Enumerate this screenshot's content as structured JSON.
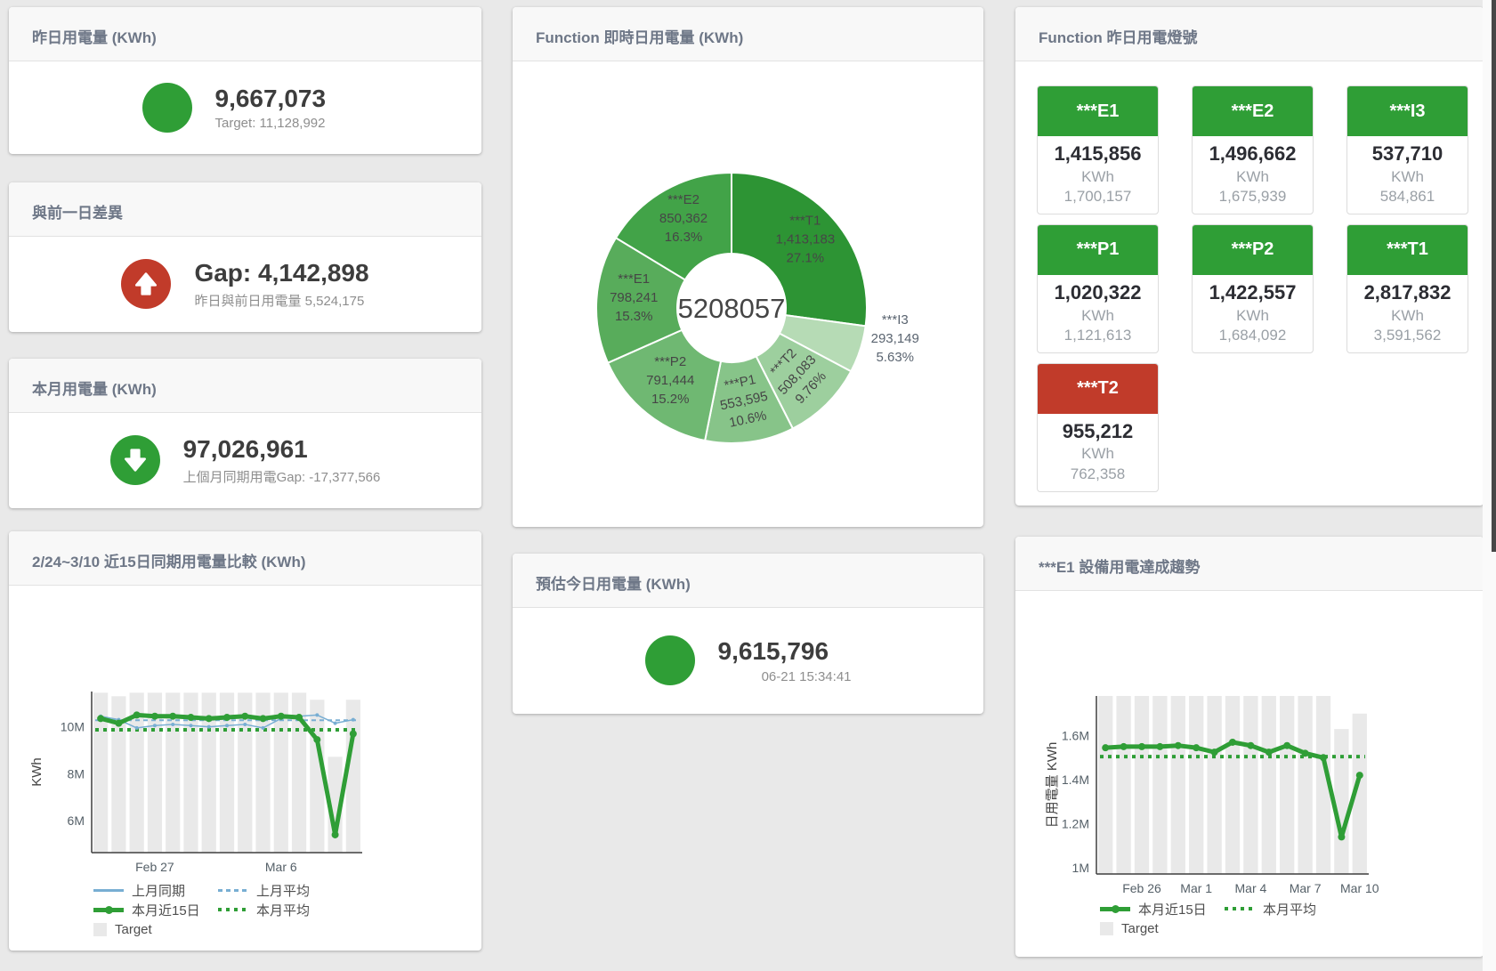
{
  "colors": {
    "green": "#2f9e36",
    "red": "#c13b2a",
    "blue": "#78aed3",
    "target_bar": "#e9e9e9",
    "page_bg": "#e9e9e9",
    "panel_header_bg": "#f8f8f8",
    "title_text": "#6e7787"
  },
  "kpi": {
    "yesterday": {
      "title": "昨日用電量 (KWh)",
      "value": "9,667,073",
      "subtitle": "Target: 11,128,992",
      "indicator": "circle",
      "indicator_color": "#2f9e36"
    },
    "prev_gap": {
      "title": "與前一日差異",
      "value": "Gap: 4,142,898",
      "subtitle": "昨日與前日用電量 5,524,175",
      "indicator": "arrow-up",
      "indicator_color": "#c13b2a"
    },
    "month": {
      "title": "本月用電量 (KWh)",
      "value": "97,026,961",
      "subtitle": "上個月同期用電Gap: -17,377,566",
      "indicator": "arrow-down",
      "indicator_color": "#2f9e36"
    },
    "estimate": {
      "title": "預估今日用電量 (KWh)",
      "value": "9,615,796",
      "subtitle": "06-21 15:34:41",
      "indicator": "circle",
      "indicator_color": "#2f9e36"
    }
  },
  "status_panel": {
    "title": "Function 昨日用電燈號",
    "unit": "KWh",
    "cards": [
      {
        "name": "***E1",
        "value": "1,415,856",
        "target": "1,700,157",
        "status_color": "#2f9e36"
      },
      {
        "name": "***E2",
        "value": "1,496,662",
        "target": "1,675,939",
        "status_color": "#2f9e36"
      },
      {
        "name": "***I3",
        "value": "537,710",
        "target": "584,861",
        "status_color": "#2f9e36"
      },
      {
        "name": "***P1",
        "value": "1,020,322",
        "target": "1,121,613",
        "status_color": "#2f9e36"
      },
      {
        "name": "***P2",
        "value": "1,422,557",
        "target": "1,684,092",
        "status_color": "#2f9e36"
      },
      {
        "name": "***T1",
        "value": "2,817,832",
        "target": "3,591,562",
        "status_color": "#2f9e36"
      },
      {
        "name": "***T2",
        "value": "955,212",
        "target": "762,358",
        "status_color": "#c13b2a"
      }
    ]
  },
  "chart_data": [
    {
      "id": "donut",
      "type": "pie",
      "title": "Function 即時日用電量 (KWh)",
      "center_label": "5208057",
      "slices": [
        {
          "name": "***T1",
          "value": 1413183,
          "value_label": "1,413,183",
          "percent_label": "27.1%",
          "color": "#2d9434",
          "label": "inside",
          "rotate": 0
        },
        {
          "name": "***I3",
          "value": 293149,
          "value_label": "293,149",
          "percent_label": "5.63%",
          "color": "#b6dbb5",
          "label": "outside",
          "rotate": 0
        },
        {
          "name": "***T2",
          "value": 508083,
          "value_label": "508,083",
          "percent_label": "9.76%",
          "color": "#9dcf9e",
          "label": "inside",
          "rotate": -47
        },
        {
          "name": "***P1",
          "value": 553595,
          "value_label": "553,595",
          "percent_label": "10.6%",
          "color": "#87c489",
          "label": "inside",
          "rotate": -12
        },
        {
          "name": "***P2",
          "value": 791444,
          "value_label": "791,444",
          "percent_label": "15.2%",
          "color": "#6fb872",
          "label": "inside",
          "rotate": 0
        },
        {
          "name": "***E1",
          "value": 798241,
          "value_label": "798,241",
          "percent_label": "15.3%",
          "color": "#58ac5b",
          "label": "inside",
          "rotate": 0
        },
        {
          "name": "***E2",
          "value": 850362,
          "value_label": "850,362",
          "percent_label": "16.3%",
          "color": "#42a348",
          "label": "inside",
          "rotate": 0
        }
      ]
    },
    {
      "id": "compare",
      "type": "line",
      "title": "2/24~3/10 近15日同期用電量比較 (KWh)",
      "ylabel": "KWh",
      "categories": [
        "2/24",
        "2/25",
        "2/26",
        "2/27",
        "2/28",
        "3/1",
        "3/2",
        "3/3",
        "3/4",
        "3/5",
        "3/6",
        "3/7",
        "3/8",
        "3/9",
        "3/10"
      ],
      "x_count": 15,
      "xticks": [
        {
          "i": 3,
          "label": "Feb 27"
        },
        {
          "i": 10,
          "label": "Mar 6"
        }
      ],
      "yticks": [
        {
          "v": 6000000,
          "label": "6M"
        },
        {
          "v": 8000000,
          "label": "8M"
        },
        {
          "v": 10000000,
          "label": "10M"
        }
      ],
      "ylim": [
        4640000,
        11500000
      ],
      "legend_rows": [
        [
          3,
          1
        ],
        [
          4,
          2
        ],
        [
          0
        ]
      ],
      "series": [
        {
          "name": "Target",
          "type": "bar",
          "color": "#e9e9e9",
          "values": [
            11450000,
            11300000,
            11450000,
            11450000,
            11450000,
            11450000,
            11450000,
            11450000,
            11450000,
            11450000,
            11450000,
            11450000,
            11150000,
            8720000,
            11150000
          ]
        },
        {
          "name": "上月平均",
          "type": "line",
          "style": "dashed",
          "color": "#78aed3",
          "width": 2,
          "constant": 10280000
        },
        {
          "name": "本月平均",
          "type": "line",
          "style": "dotted",
          "color": "#2f9e36",
          "width": 4,
          "constant": 9870000
        },
        {
          "name": "上月同期",
          "type": "line",
          "style": "solid",
          "color": "#78aed3",
          "width": 1.5,
          "marker": 2,
          "values": [
            10450000,
            10300000,
            9950000,
            10050000,
            10100000,
            10050000,
            10000000,
            10050000,
            10100000,
            9950000,
            10350000,
            10450000,
            10500000,
            10150000,
            10300000
          ]
        },
        {
          "name": "本月近15日",
          "type": "line",
          "style": "solid",
          "color": "#2f9e36",
          "width": 5,
          "marker": 4,
          "values": [
            10350000,
            10150000,
            10500000,
            10450000,
            10450000,
            10400000,
            10350000,
            10400000,
            10450000,
            10350000,
            10450000,
            10400000,
            9450000,
            5400000,
            9700000
          ]
        }
      ]
    },
    {
      "id": "trend",
      "type": "line",
      "title": "***E1 設備用電達成趨勢",
      "ylabel": "日用電量 KWh",
      "categories": [
        "2/24",
        "2/25",
        "2/26",
        "2/27",
        "2/28",
        "3/1",
        "3/2",
        "3/3",
        "3/4",
        "3/5",
        "3/6",
        "3/7",
        "3/8",
        "3/9",
        "3/10"
      ],
      "x_count": 15,
      "xticks": [
        {
          "i": 2,
          "label": "Feb 26"
        },
        {
          "i": 5,
          "label": "Mar 1"
        },
        {
          "i": 8,
          "label": "Mar 4"
        },
        {
          "i": 11,
          "label": "Mar 7"
        },
        {
          "i": 14,
          "label": "Mar 10"
        }
      ],
      "yticks": [
        {
          "v": 1000000,
          "label": "1M"
        },
        {
          "v": 1200000,
          "label": "1.2M"
        },
        {
          "v": 1400000,
          "label": "1.4M"
        },
        {
          "v": 1600000,
          "label": "1.6M"
        }
      ],
      "ylim": [
        972000,
        1780000
      ],
      "legend_rows": [
        [
          2,
          1
        ],
        [
          0
        ]
      ],
      "series": [
        {
          "name": "Target",
          "type": "bar",
          "color": "#e9e9e9",
          "values": [
            1780000,
            1780000,
            1780000,
            1780000,
            1780000,
            1780000,
            1780000,
            1780000,
            1780000,
            1780000,
            1780000,
            1780000,
            1780000,
            1630000,
            1700000
          ]
        },
        {
          "name": "本月平均",
          "type": "line",
          "style": "dotted",
          "color": "#2f9e36",
          "width": 4,
          "constant": 1505000
        },
        {
          "name": "本月近15日",
          "type": "line",
          "style": "solid",
          "color": "#2f9e36",
          "width": 5,
          "marker": 4,
          "values": [
            1545000,
            1550000,
            1550000,
            1550000,
            1555000,
            1545000,
            1525000,
            1570000,
            1555000,
            1525000,
            1555000,
            1520000,
            1500000,
            1140000,
            1420000
          ]
        }
      ]
    }
  ]
}
